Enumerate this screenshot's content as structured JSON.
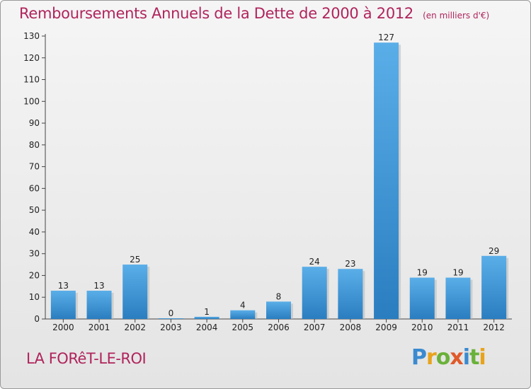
{
  "header": {
    "title": "Remboursements Annuels de la Dette de 2000 à 2012",
    "unit": "(en milliers d'€)"
  },
  "footer": {
    "commune": "LA FORêT-LE-ROI",
    "brand": "Proxiti"
  },
  "colors": {
    "title": "#b0245c",
    "bar_light": "#5aaee8",
    "bar_dark": "#2a7ec0"
  },
  "chart_data": {
    "type": "bar",
    "categories": [
      "2000",
      "2001",
      "2002",
      "2003",
      "2004",
      "2005",
      "2006",
      "2007",
      "2008",
      "2009",
      "2010",
      "2011",
      "2012"
    ],
    "values": [
      13,
      13,
      25,
      0,
      1,
      4,
      8,
      24,
      23,
      127,
      19,
      19,
      29
    ],
    "ylim": [
      0,
      130
    ],
    "yticks": [
      0,
      10,
      20,
      30,
      40,
      50,
      60,
      70,
      80,
      90,
      100,
      110,
      120,
      130
    ],
    "grid": false,
    "legend": "none"
  }
}
